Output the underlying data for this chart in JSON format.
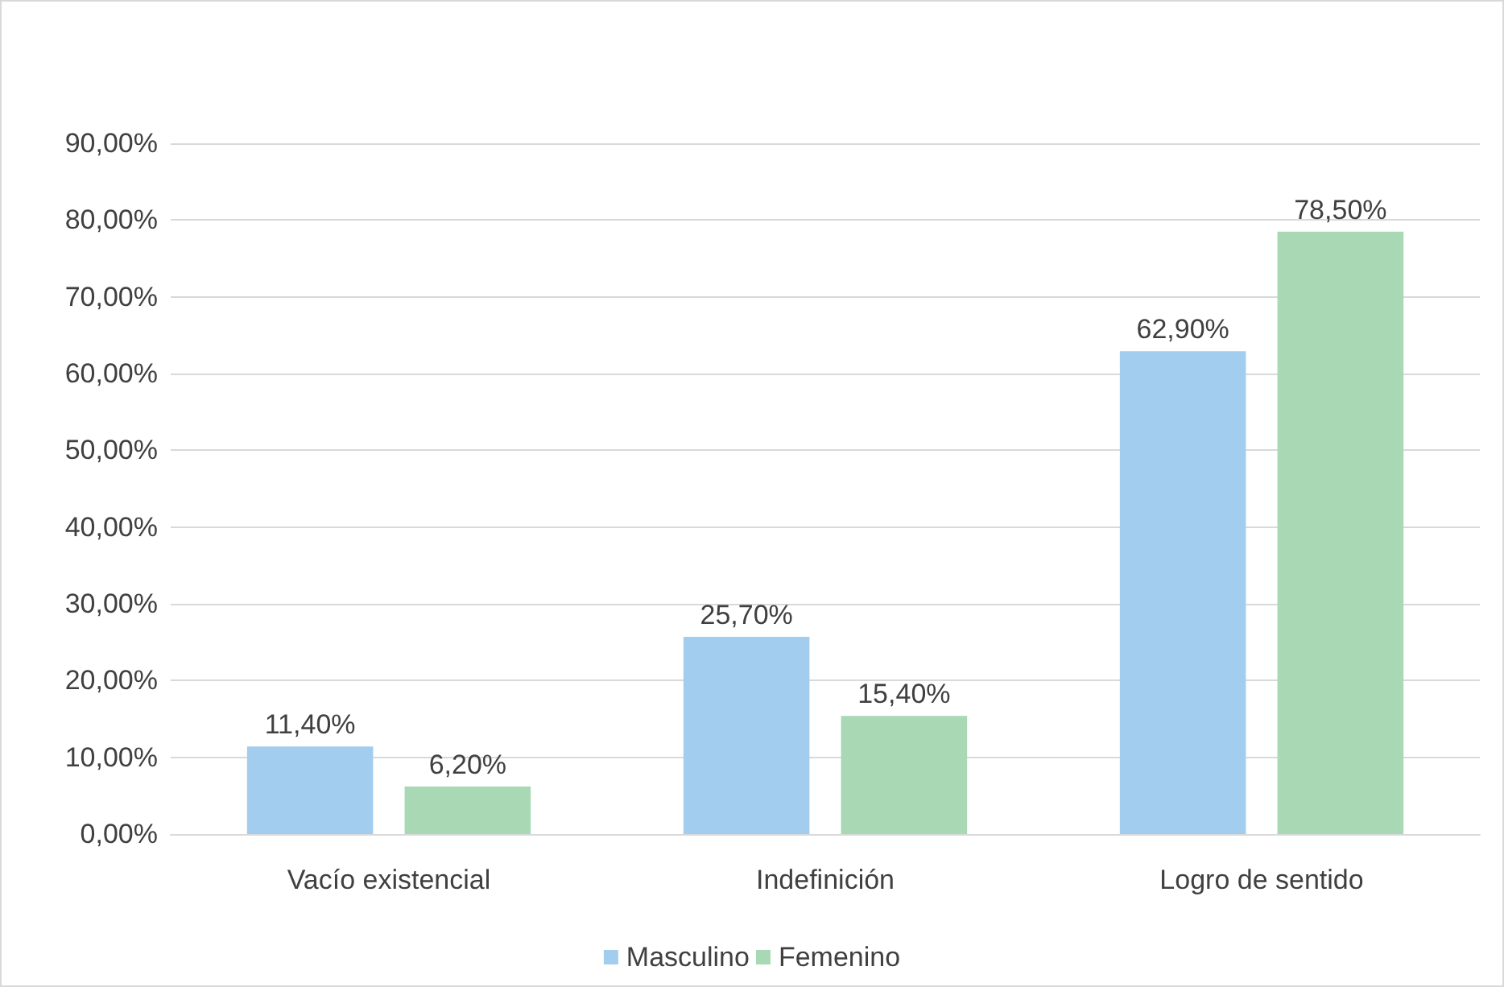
{
  "chart_data": {
    "type": "bar",
    "categories": [
      "Vacío existencial",
      "Indefinición",
      "Logro de sentido"
    ],
    "series": [
      {
        "name": "Masculino",
        "color": "#a3cdee",
        "values": [
          11.4,
          25.7,
          62.9
        ],
        "value_labels": [
          "11,40%",
          "25,70%",
          "62,90%"
        ]
      },
      {
        "name": "Femenino",
        "color": "#a8d8b4",
        "values": [
          6.2,
          15.4,
          78.5
        ],
        "value_labels": [
          "6,20%",
          "15,40%",
          "78,50%"
        ]
      }
    ],
    "ylim": [
      0,
      90
    ],
    "yticks": [
      {
        "value": 0,
        "label": "0,00%"
      },
      {
        "value": 10,
        "label": "10,00%"
      },
      {
        "value": 20,
        "label": "20,00%"
      },
      {
        "value": 30,
        "label": "30,00%"
      },
      {
        "value": 40,
        "label": "40,00%"
      },
      {
        "value": 50,
        "label": "50,00%"
      },
      {
        "value": 60,
        "label": "60,00%"
      },
      {
        "value": 70,
        "label": "70,00%"
      },
      {
        "value": 80,
        "label": "80,00%"
      },
      {
        "value": 90,
        "label": "90,00%"
      }
    ],
    "grid": "y",
    "legend": "bottom"
  }
}
